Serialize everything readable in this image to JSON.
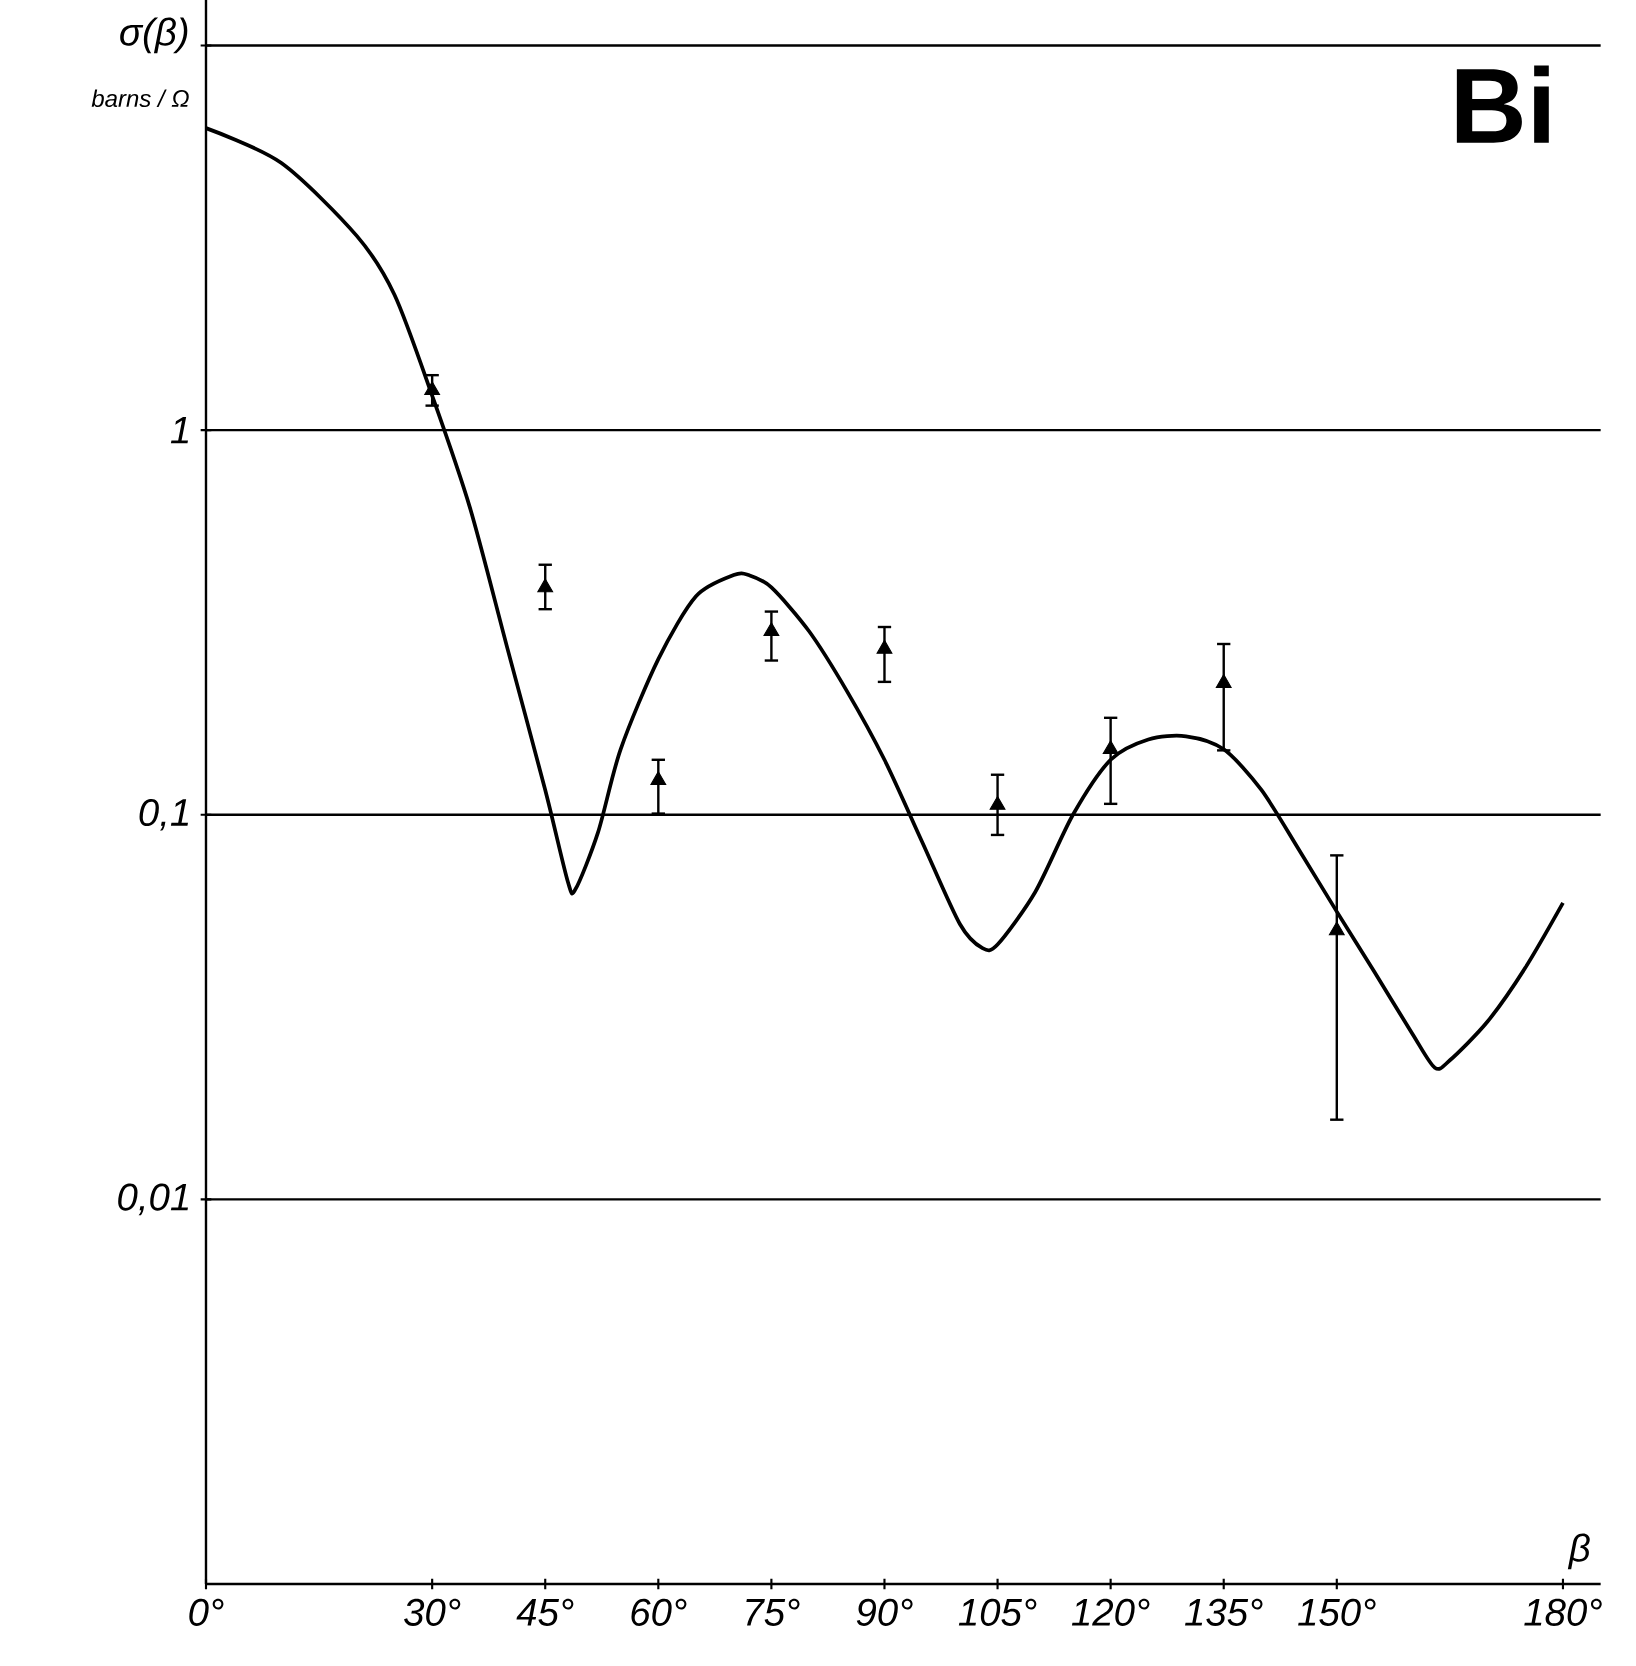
{
  "chart_data": {
    "type": "line",
    "title": "Bi",
    "ylabel": "σ(β)",
    "xlabel": "β",
    "annotations": [
      "barns / Ω"
    ],
    "log": "y",
    "grid": "y",
    "xlim": [
      0,
      185
    ],
    "ylim": [
      0.001,
      10
    ],
    "xticks": [
      {
        "value": 0,
        "label": "0°"
      },
      {
        "value": 30,
        "label": "30°"
      },
      {
        "value": 45,
        "label": "45°"
      },
      {
        "value": 60,
        "label": "60°"
      },
      {
        "value": 75,
        "label": "75°"
      },
      {
        "value": 90,
        "label": "90°"
      },
      {
        "value": 105,
        "label": "105°"
      },
      {
        "value": 120,
        "label": "120°"
      },
      {
        "value": 135,
        "label": "135°"
      },
      {
        "value": 150,
        "label": "150°"
      },
      {
        "value": 180,
        "label": "180°"
      }
    ],
    "yticks": [
      {
        "value": 0.01,
        "label": "0,01"
      },
      {
        "value": 0.1,
        "label": "0,1"
      },
      {
        "value": 1,
        "label": "1"
      },
      {
        "value": 10,
        "label": null
      }
    ],
    "series": [
      {
        "type": "scatter",
        "marker": "triangle",
        "color": "#000000",
        "x": [
          30,
          45,
          60,
          75,
          90,
          105,
          120,
          135,
          150
        ],
        "values": [
          1.27,
          0.39,
          0.123,
          0.3,
          0.27,
          0.106,
          0.148,
          0.22,
          0.05
        ],
        "errors": [
          [
            1.15,
            1.4
          ],
          [
            0.34,
            0.45
          ],
          [
            0.1,
            0.14
          ],
          [
            0.25,
            0.34
          ],
          [
            0.22,
            0.31
          ],
          [
            0.088,
            0.128
          ],
          [
            0.106,
            0.18
          ],
          [
            0.146,
            0.28
          ],
          [
            0.016,
            0.079
          ]
        ]
      },
      {
        "color": "#000000",
        "x": [
          0,
          10,
          20,
          25,
          30,
          35,
          40,
          45,
          48,
          49,
          52,
          55,
          60,
          65,
          70,
          72,
          75,
          80,
          85,
          90,
          95,
          100,
          103,
          105,
          110,
          115,
          120,
          125,
          130,
          135,
          140,
          145,
          150,
          155,
          160,
          163,
          165,
          170,
          175,
          180
        ],
        "values": [
          6.1,
          4.95,
          3.2,
          2.25,
          1.23,
          0.63,
          0.27,
          0.116,
          0.067,
          0.064,
          0.09,
          0.148,
          0.254,
          0.37,
          0.42,
          0.42,
          0.39,
          0.3,
          0.21,
          0.139,
          0.085,
          0.052,
          0.045,
          0.046,
          0.063,
          0.1,
          0.139,
          0.157,
          0.16,
          0.148,
          0.116,
          0.081,
          0.056,
          0.039,
          0.027,
          0.022,
          0.023,
          0.029,
          0.04,
          0.059
        ]
      }
    ]
  }
}
